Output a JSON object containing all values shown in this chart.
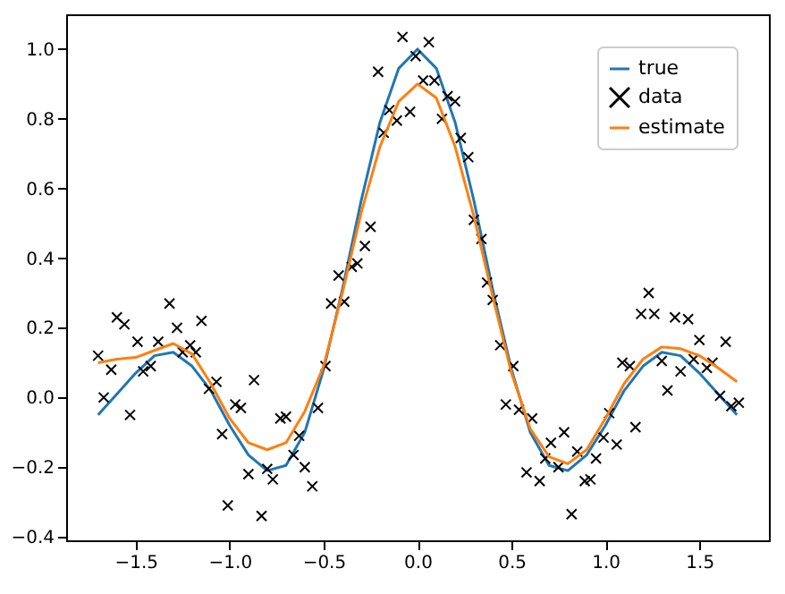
{
  "chart_data": {
    "type": "line",
    "xlim": [
      -1.87,
      1.87
    ],
    "ylim": [
      -0.41,
      1.1
    ],
    "xticks": [
      {
        "value": -1.5,
        "label": "−1.5"
      },
      {
        "value": -1.0,
        "label": "−1.0"
      },
      {
        "value": -0.5,
        "label": "−0.5"
      },
      {
        "value": 0,
        "label": "0.0"
      },
      {
        "value": 0.5,
        "label": "0.5"
      },
      {
        "value": 1.0,
        "label": "1.0"
      },
      {
        "value": 1.5,
        "label": "1.5"
      }
    ],
    "yticks": [
      {
        "value": -0.4,
        "label": "−0.4"
      },
      {
        "value": -0.2,
        "label": "−0.2"
      },
      {
        "value": 0,
        "label": "0.0"
      },
      {
        "value": 0.2,
        "label": "0.2"
      },
      {
        "value": 0.4,
        "label": "0.4"
      },
      {
        "value": 0.6,
        "label": "0.6"
      },
      {
        "value": 0.8,
        "label": "0.8"
      },
      {
        "value": 1.0,
        "label": "1.0"
      }
    ],
    "grid": false,
    "legend": "top right",
    "series": [
      {
        "name": "true",
        "line_style": "solid",
        "color": "#1f77b4",
        "x": [
          -1.7,
          -1.6,
          -1.5,
          -1.4,
          -1.3,
          -1.2,
          -1.1,
          -1.0,
          -0.9,
          -0.8,
          -0.7,
          -0.6,
          -0.5,
          -0.4,
          -0.3,
          -0.2,
          -0.1,
          0,
          0.1,
          0.2,
          0.3,
          0.4,
          0.5,
          0.6,
          0.7,
          0.8,
          0.9,
          1.0,
          1.1,
          1.2,
          1.3,
          1.4,
          1.5,
          1.6,
          1.7
        ],
        "values": [
          -0.05,
          0.01,
          0.07,
          0.12,
          0.13,
          0.09,
          0.02,
          -0.08,
          -0.165,
          -0.21,
          -0.195,
          -0.1,
          0.08,
          0.31,
          0.565,
          0.79,
          0.945,
          1.0,
          0.945,
          0.79,
          0.565,
          0.31,
          0.08,
          -0.1,
          -0.195,
          -0.21,
          -0.165,
          -0.08,
          0.02,
          0.09,
          0.13,
          0.12,
          0.07,
          0.01,
          -0.05
        ]
      },
      {
        "name": "data",
        "type": "scatter",
        "marker": "cross",
        "color": "#000000",
        "x": [
          -1.7,
          -1.67,
          -1.63,
          -1.6,
          -1.56,
          -1.53,
          -1.49,
          -1.46,
          -1.42,
          -1.38,
          -1.32,
          -1.28,
          -1.25,
          -1.21,
          -1.18,
          -1.15,
          -1.11,
          -1.07,
          -1.04,
          -1.01,
          -0.97,
          -0.94,
          -0.9,
          -0.87,
          -0.83,
          -0.8,
          -0.77,
          -0.73,
          -0.7,
          -0.66,
          -0.63,
          -0.6,
          -0.56,
          -0.53,
          -0.49,
          -0.46,
          -0.42,
          -0.39,
          -0.35,
          -0.32,
          -0.28,
          -0.25,
          -0.21,
          -0.18,
          -0.15,
          -0.11,
          -0.08,
          -0.04,
          -0.01,
          0.03,
          0.06,
          0.09,
          0.13,
          0.16,
          0.2,
          0.23,
          0.27,
          0.3,
          0.34,
          0.37,
          0.4,
          0.44,
          0.47,
          0.51,
          0.54,
          0.58,
          0.61,
          0.65,
          0.68,
          0.71,
          0.75,
          0.78,
          0.82,
          0.85,
          0.89,
          0.92,
          0.95,
          0.99,
          1.02,
          1.06,
          1.09,
          1.13,
          1.16,
          1.19,
          1.23,
          1.26,
          1.3,
          1.33,
          1.37,
          1.4,
          1.44,
          1.47,
          1.5,
          1.54,
          1.57,
          1.61,
          1.64,
          1.67,
          1.71
        ],
        "values": [
          0.12,
          0.0,
          0.08,
          0.23,
          0.21,
          -0.05,
          0.16,
          0.075,
          0.09,
          0.16,
          0.27,
          0.2,
          0.13,
          0.15,
          0.13,
          0.22,
          0.025,
          0.045,
          -0.105,
          -0.31,
          -0.02,
          -0.03,
          -0.22,
          0.05,
          -0.34,
          -0.205,
          -0.235,
          -0.06,
          -0.055,
          -0.165,
          -0.11,
          -0.2,
          -0.255,
          -0.03,
          0.09,
          0.27,
          0.35,
          0.275,
          0.375,
          0.385,
          0.435,
          0.49,
          0.935,
          0.76,
          0.825,
          0.795,
          1.035,
          0.82,
          0.98,
          0.91,
          1.02,
          0.91,
          0.8,
          0.865,
          0.85,
          0.745,
          0.69,
          0.51,
          0.455,
          0.33,
          0.28,
          0.15,
          -0.02,
          0.09,
          -0.035,
          -0.215,
          -0.06,
          -0.24,
          -0.175,
          -0.13,
          -0.2,
          -0.1,
          -0.335,
          -0.155,
          -0.24,
          -0.235,
          -0.175,
          -0.115,
          -0.045,
          -0.135,
          0.1,
          0.09,
          -0.085,
          0.24,
          0.3,
          0.24,
          0.105,
          0.02,
          0.23,
          0.075,
          0.225,
          0.11,
          0.165,
          0.085,
          0.1,
          0.005,
          0.16,
          -0.025,
          -0.015
        ]
      },
      {
        "name": "estimate",
        "line_style": "solid",
        "color": "#ff7f0e",
        "x": [
          -1.7,
          -1.6,
          -1.5,
          -1.4,
          -1.3,
          -1.2,
          -1.1,
          -1.0,
          -0.9,
          -0.8,
          -0.7,
          -0.6,
          -0.5,
          -0.4,
          -0.3,
          -0.2,
          -0.1,
          0,
          0.1,
          0.2,
          0.3,
          0.4,
          0.5,
          0.6,
          0.7,
          0.8,
          0.9,
          1.0,
          1.1,
          1.2,
          1.3,
          1.4,
          1.5,
          1.6,
          1.7
        ],
        "values": [
          0.1,
          0.11,
          0.115,
          0.135,
          0.155,
          0.125,
          0.04,
          -0.06,
          -0.13,
          -0.15,
          -0.13,
          -0.04,
          0.09,
          0.3,
          0.53,
          0.72,
          0.85,
          0.9,
          0.86,
          0.72,
          0.52,
          0.29,
          0.07,
          -0.09,
          -0.17,
          -0.19,
          -0.15,
          -0.06,
          0.04,
          0.11,
          0.145,
          0.14,
          0.12,
          0.085,
          0.045
        ]
      }
    ]
  }
}
